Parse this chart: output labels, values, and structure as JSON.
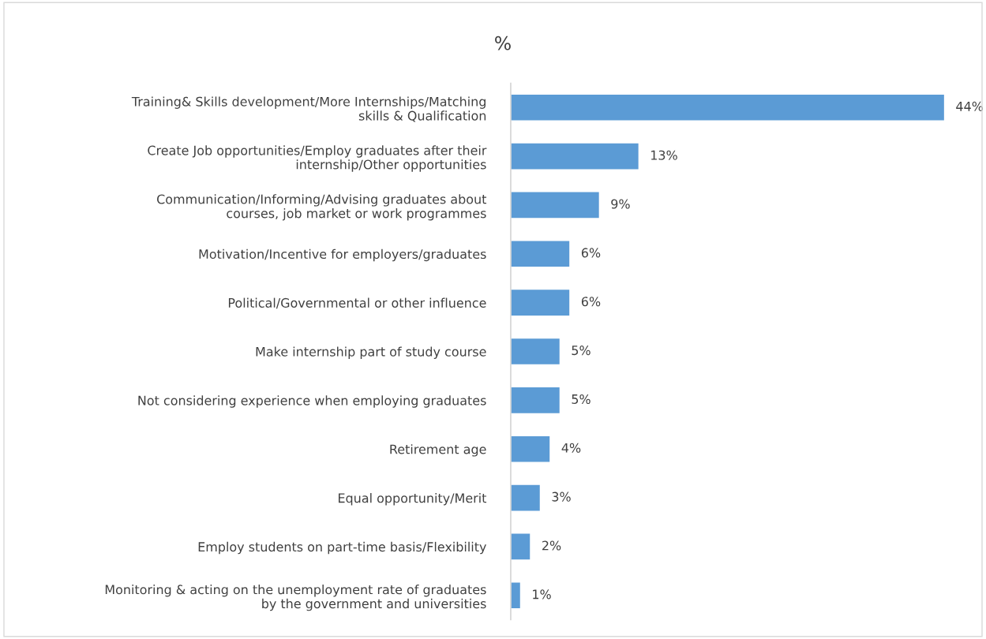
{
  "chart_data": {
    "type": "bar",
    "orientation": "horizontal",
    "title": "%",
    "categories": [
      "Training& Skills development/More Internships/Matching\nskills & Qualification",
      "Create Job opportunities/Employ graduates after their\ninternship/Other opportunities",
      "Communication/Informing/Advising graduates about\ncourses, job market or work programmes",
      "Motivation/Incentive for employers/graduates",
      "Political/Governmental or other influence",
      "Make internship part of study course",
      "Not considering experience when employing graduates",
      "Retirement age",
      "Equal opportunity/Merit",
      "Employ students on part-time basis/Flexibility",
      "Monitoring & acting on the unemployment rate of graduates\nby the government and universities"
    ],
    "values": [
      44,
      13,
      9,
      6,
      6,
      5,
      5,
      4,
      3,
      2,
      1
    ],
    "value_labels": [
      "44%",
      "13%",
      "9%",
      "6%",
      "6%",
      "5%",
      "5%",
      "4%",
      "3%",
      "2%",
      "1%"
    ],
    "color": "#5b9bd5",
    "grid": false,
    "legend": false
  }
}
